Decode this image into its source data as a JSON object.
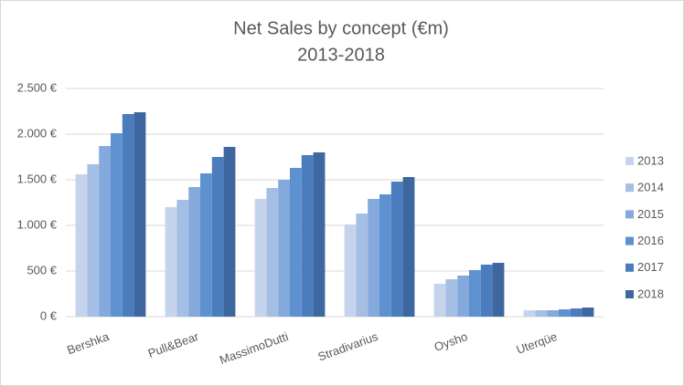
{
  "chart_data": {
    "type": "bar",
    "title": "Net Sales by concept (€m)",
    "subtitle": "2013-2018",
    "categories": [
      "Bershka",
      "Pull&Bear",
      "MassimoDutti",
      "Stradivarius",
      "Oysho",
      "Uterqüe"
    ],
    "series": [
      {
        "name": "2013",
        "color": "#c5d4ec",
        "values": [
          1560,
          1200,
          1290,
          1010,
          360,
          70
        ]
      },
      {
        "name": "2014",
        "color": "#a5bee4",
        "values": [
          1670,
          1280,
          1410,
          1130,
          410,
          70
        ]
      },
      {
        "name": "2015",
        "color": "#84a9dc",
        "values": [
          1870,
          1420,
          1500,
          1290,
          450,
          70
        ]
      },
      {
        "name": "2016",
        "color": "#5e91d0",
        "values": [
          2010,
          1570,
          1630,
          1340,
          510,
          80
        ]
      },
      {
        "name": "2017",
        "color": "#4a7cbe",
        "values": [
          2220,
          1750,
          1770,
          1480,
          570,
          90
        ]
      },
      {
        "name": "2018",
        "color": "#3e67a0",
        "values": [
          2240,
          1860,
          1800,
          1530,
          590,
          100
        ]
      }
    ],
    "ylim": [
      0,
      2500
    ],
    "yticks": [
      {
        "value": 0,
        "label": "0 €"
      },
      {
        "value": 500,
        "label": "500 €"
      },
      {
        "value": 1000,
        "label": "1.000 €"
      },
      {
        "value": 1500,
        "label": "1.500 €"
      },
      {
        "value": 2000,
        "label": "2.000 €"
      },
      {
        "value": 2500,
        "label": "2.500 €"
      }
    ],
    "grid": true,
    "legend": "right"
  }
}
